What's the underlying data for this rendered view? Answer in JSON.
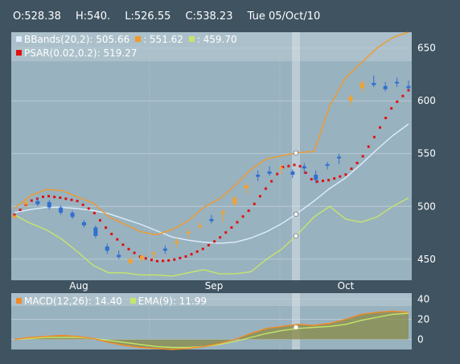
{
  "header": {
    "open": "O:528.38",
    "high": "H:540.",
    "low": "L:526.55",
    "close": "C:538.23",
    "date": "Tue 05/Oct/10"
  },
  "legend_main": {
    "bbands_label": "BBands(20,2): 505.66",
    "bbands_upper": ": 551.62",
    "bbands_lower": ": 459.70",
    "psar_label": "PSAR(0.02,0.2): 519.27"
  },
  "legend_macd": {
    "macd_label": "MACD(12,26): 14.40",
    "ema_label": "EMA(9): 11.99"
  },
  "colors": {
    "background": "#3f5361",
    "plot_bg": "#99b2bf",
    "bb_mid": "#ddeeff",
    "bb_upper": "#f19a2a",
    "bb_lower": "#c6e66a",
    "psar": "#e01010",
    "candle_up": "#f2a230",
    "candle_down": "#2f6fcf",
    "macd": "#f28a25",
    "ema": "#c6e66a",
    "crosshair": "#d8e2e8"
  },
  "chart_data": [
    {
      "type": "candlestick",
      "x_labels": [
        "Aug",
        "Sep",
        "Oct"
      ],
      "ylim": [
        430,
        665
      ],
      "y_ticks": [
        450,
        500,
        550,
        600,
        650
      ],
      "grid": true,
      "crosshair_date": "Tue 05/Oct/10",
      "series": [
        {
          "name": "BBands(20,2)",
          "y": [
            494,
            497,
            499,
            499,
            498,
            496,
            493,
            488,
            483,
            477,
            471,
            468,
            466,
            465,
            466,
            470,
            476,
            484,
            494,
            505,
            517,
            527,
            540,
            554,
            567,
            578
          ]
        },
        {
          "name": "upper",
          "y": [
            498,
            510,
            516,
            515,
            509,
            503,
            490,
            483,
            476,
            473,
            478,
            486,
            499,
            507,
            520,
            535,
            545,
            548,
            551,
            552,
            595,
            622,
            636,
            650,
            660,
            665
          ]
        },
        {
          "name": "lower",
          "y": [
            492,
            484,
            478,
            469,
            457,
            444,
            437,
            437,
            435,
            435,
            434,
            437,
            440,
            436,
            436,
            438,
            450,
            460,
            474,
            490,
            500,
            488,
            485,
            490,
            500,
            508
          ]
        },
        {
          "name": "PSAR(0.02,0.2)",
          "y": [
            492,
            505,
            510,
            508,
            505,
            495,
            476,
            462,
            452,
            448,
            449,
            453,
            460,
            470,
            483,
            498,
            518,
            537,
            540,
            523,
            525,
            530,
            545,
            570,
            595,
            610
          ]
        }
      ],
      "candles": [
        [
          490,
          492,
          488,
          491
        ],
        [
          502,
          507,
          498,
          504
        ],
        [
          505,
          508,
          500,
          502
        ],
        [
          504,
          506,
          497,
          499
        ],
        [
          499,
          501,
          492,
          494
        ],
        [
          494,
          496,
          488,
          490
        ],
        [
          485,
          487,
          480,
          482
        ],
        [
          480,
          482,
          470,
          472
        ],
        [
          462,
          465,
          455,
          458
        ],
        [
          454,
          458,
          450,
          452
        ],
        [
          446,
          452,
          445,
          450
        ],
        [
          450,
          455,
          447,
          453
        ],
        [
          455,
          458,
          450,
          456
        ],
        [
          460,
          463,
          455,
          458
        ],
        [
          465,
          470,
          461,
          467
        ],
        [
          475,
          479,
          470,
          476
        ],
        [
          481,
          485,
          478,
          482
        ],
        [
          488,
          492,
          484,
          486
        ],
        [
          493,
          497,
          485,
          495
        ],
        [
          502,
          510,
          500,
          508
        ],
        [
          517,
          522,
          512,
          520
        ],
        [
          530,
          534,
          524,
          528
        ],
        [
          533,
          538,
          529,
          531
        ],
        [
          536,
          540,
          531,
          537
        ],
        [
          533,
          535,
          527,
          530
        ],
        [
          538,
          541,
          531,
          536
        ],
        [
          530,
          534,
          522,
          525
        ],
        [
          540,
          542,
          535,
          539
        ],
        [
          547,
          550,
          540,
          546
        ],
        [
          600,
          606,
          596,
          604
        ],
        [
          612,
          620,
          608,
          617
        ],
        [
          617,
          624,
          613,
          615
        ],
        [
          614,
          618,
          609,
          611
        ],
        [
          618,
          622,
          613,
          617
        ],
        [
          614,
          619,
          610,
          612
        ]
      ]
    },
    {
      "type": "area",
      "ylim": [
        -10,
        46
      ],
      "y_ticks": [
        0,
        20,
        40
      ],
      "series": [
        {
          "name": "MACD(12,26)",
          "y": [
            0,
            2,
            3,
            4,
            3,
            1,
            -3,
            -6,
            -8,
            -9,
            -10,
            -9,
            -7,
            -4,
            0,
            6,
            11,
            13,
            15,
            14,
            16,
            20,
            25,
            27,
            28,
            27
          ]
        },
        {
          "name": "EMA(9)",
          "y": [
            0,
            1,
            2,
            2,
            2,
            1,
            -1,
            -3,
            -5,
            -7,
            -8,
            -8,
            -7,
            -5,
            -2,
            2,
            6,
            9,
            11,
            12,
            13,
            15,
            19,
            22,
            25,
            26
          ]
        }
      ]
    }
  ]
}
